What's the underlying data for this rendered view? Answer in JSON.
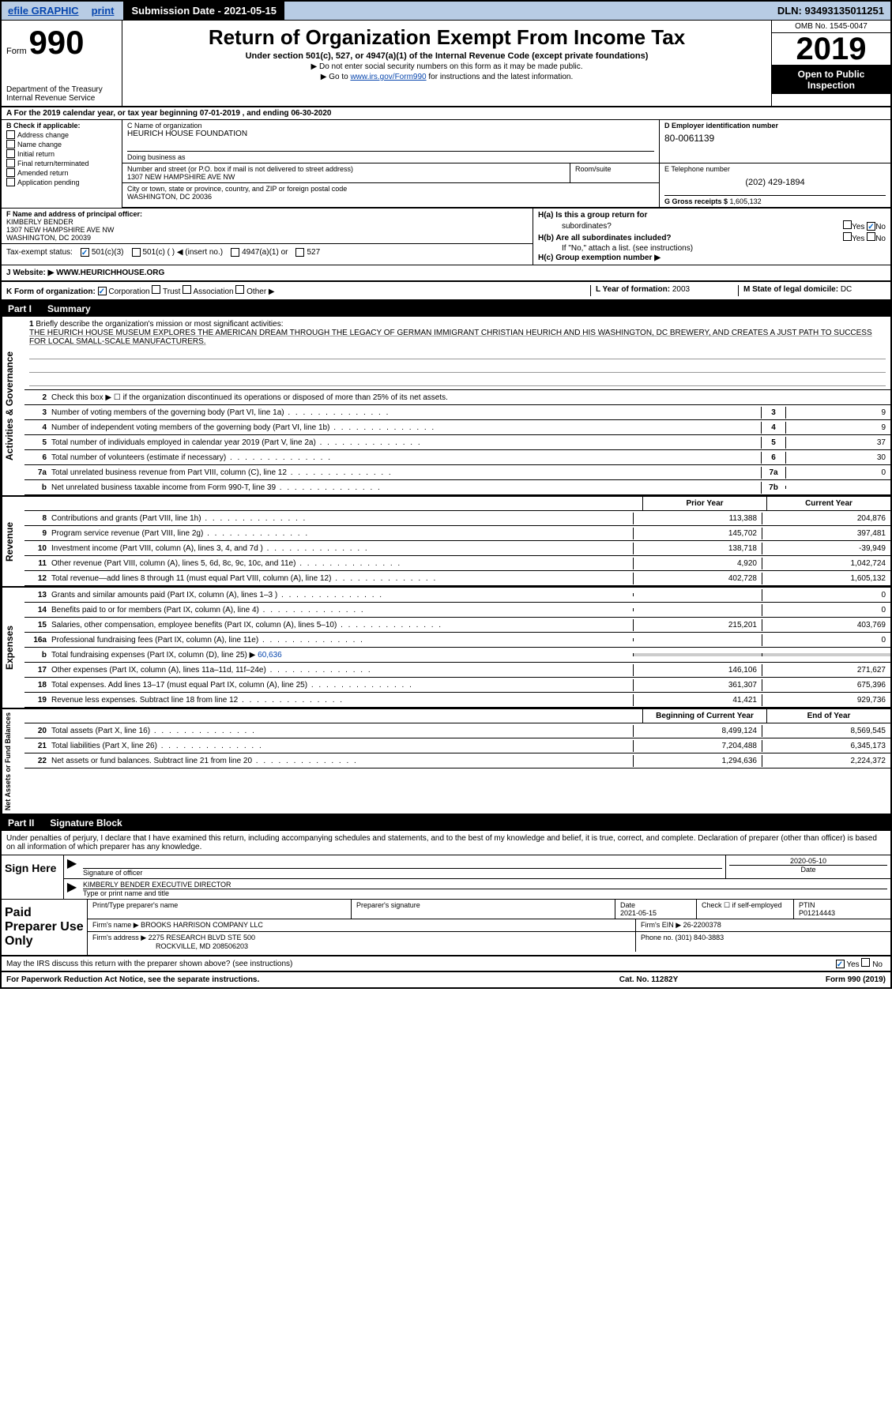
{
  "topbar": {
    "efile": "efile GRAPHIC",
    "print": "print",
    "submission_label": "Submission Date - 2021-05-15",
    "dln": "DLN: 93493135011251"
  },
  "header": {
    "form_label": "Form",
    "form_number": "990",
    "dept": "Department of the Treasury\nInternal Revenue Service",
    "title": "Return of Organization Exempt From Income Tax",
    "subtitle": "Under section 501(c), 527, or 4947(a)(1) of the Internal Revenue Code (except private foundations)",
    "note1": "▶ Do not enter social security numbers on this form as it may be made public.",
    "note2_pre": "▶ Go to ",
    "note2_link": "www.irs.gov/Form990",
    "note2_post": " for instructions and the latest information.",
    "omb": "OMB No. 1545-0047",
    "year": "2019",
    "open_public": "Open to Public Inspection"
  },
  "period": {
    "text": "A For the 2019 calendar year, or tax year beginning 07-01-2019    , and ending 06-30-2020"
  },
  "section_b": {
    "label": "B Check if applicable:",
    "items": [
      "Address change",
      "Name change",
      "Initial return",
      "Final return/terminated",
      "Amended return",
      "Application pending"
    ]
  },
  "org": {
    "name_label": "C Name of organization",
    "name": "HEURICH HOUSE FOUNDATION",
    "dba_label": "Doing business as",
    "street_label": "Number and street (or P.O. box if mail is not delivered to street address)",
    "street": "1307 NEW HAMPSHIRE AVE NW",
    "suite_label": "Room/suite",
    "city_label": "City or town, state or province, country, and ZIP or foreign postal code",
    "city": "WASHINGTON, DC  20036",
    "ein_label": "D Employer identification number",
    "ein": "80-0061139",
    "phone_label": "E Telephone number",
    "phone": "(202) 429-1894",
    "receipts_label": "G Gross receipts $ ",
    "receipts": "1,605,132"
  },
  "officer": {
    "label": "F  Name and address of principal officer:",
    "name": "KIMBERLY BENDER",
    "street": "1307 NEW HAMPSHIRE AVE NW",
    "city": "WASHINGTON, DC  20039"
  },
  "group": {
    "ha_label": "H(a)  Is this a group return for",
    "ha_label2": "subordinates?",
    "hb_label": "H(b)  Are all subordinates included?",
    "hb_note": "If \"No,\" attach a list. (see instructions)",
    "hc_label": "H(c)  Group exemption number ▶"
  },
  "tax_status": {
    "label": "Tax-exempt status:",
    "opts": [
      "501(c)(3)",
      "501(c) (  ) ◀ (insert no.)",
      "4947(a)(1) or",
      "527"
    ]
  },
  "website": {
    "label": "J  Website: ▶  ",
    "url": "WWW.HEURICHHOUSE.ORG"
  },
  "form_org": {
    "k_label": "K Form of organization:",
    "opts": [
      "Corporation",
      "Trust",
      "Association",
      "Other ▶"
    ],
    "l_label": "L Year of formation: ",
    "l_val": "2003",
    "m_label": "M State of legal domicile: ",
    "m_val": "DC"
  },
  "part1": {
    "number": "Part I",
    "title": "Summary"
  },
  "mission": {
    "num": "1",
    "label": "Briefly describe the organization's mission or most significant activities:",
    "text": "THE HEURICH HOUSE MUSEUM EXPLORES THE AMERICAN DREAM THROUGH THE LEGACY OF GERMAN IMMIGRANT CHRISTIAN HEURICH AND HIS WASHINGTON, DC BREWERY, AND CREATES A JUST PATH TO SUCCESS FOR LOCAL SMALL-SCALE MANUFACTURERS."
  },
  "activities": {
    "vertical": "Activities & Governance",
    "line2": "Check this box ▶ ☐  if the organization discontinued its operations or disposed of more than 25% of its net assets.",
    "lines": [
      {
        "num": "3",
        "label": "Number of voting members of the governing body (Part VI, line 1a)",
        "box": "3",
        "val": "9"
      },
      {
        "num": "4",
        "label": "Number of independent voting members of the governing body (Part VI, line 1b)",
        "box": "4",
        "val": "9"
      },
      {
        "num": "5",
        "label": "Total number of individuals employed in calendar year 2019 (Part V, line 2a)",
        "box": "5",
        "val": "37"
      },
      {
        "num": "6",
        "label": "Total number of volunteers (estimate if necessary)",
        "box": "6",
        "val": "30"
      },
      {
        "num": "7a",
        "label": "Total unrelated business revenue from Part VIII, column (C), line 12",
        "box": "7a",
        "val": "0"
      },
      {
        "num": "b",
        "label": "Net unrelated business taxable income from Form 990-T, line 39",
        "box": "7b",
        "val": ""
      }
    ]
  },
  "revenue": {
    "vertical": "Revenue",
    "prior_header": "Prior Year",
    "current_header": "Current Year",
    "lines": [
      {
        "num": "8",
        "label": "Contributions and grants (Part VIII, line 1h)",
        "prior": "113,388",
        "curr": "204,876"
      },
      {
        "num": "9",
        "label": "Program service revenue (Part VIII, line 2g)",
        "prior": "145,702",
        "curr": "397,481"
      },
      {
        "num": "10",
        "label": "Investment income (Part VIII, column (A), lines 3, 4, and 7d )",
        "prior": "138,718",
        "curr": "-39,949"
      },
      {
        "num": "11",
        "label": "Other revenue (Part VIII, column (A), lines 5, 6d, 8c, 9c, 10c, and 11e)",
        "prior": "4,920",
        "curr": "1,042,724"
      },
      {
        "num": "12",
        "label": "Total revenue—add lines 8 through 11 (must equal Part VIII, column (A), line 12)",
        "prior": "402,728",
        "curr": "1,605,132"
      }
    ]
  },
  "expenses": {
    "vertical": "Expenses",
    "lines": [
      {
        "num": "13",
        "label": "Grants and similar amounts paid (Part IX, column (A), lines 1–3 )",
        "prior": "",
        "curr": "0"
      },
      {
        "num": "14",
        "label": "Benefits paid to or for members (Part IX, column (A), line 4)",
        "prior": "",
        "curr": "0"
      },
      {
        "num": "15",
        "label": "Salaries, other compensation, employee benefits (Part IX, column (A), lines 5–10)",
        "prior": "215,201",
        "curr": "403,769"
      },
      {
        "num": "16a",
        "label": "Professional fundraising fees (Part IX, column (A), line 11e)",
        "prior": "",
        "curr": "0"
      }
    ],
    "line_b": {
      "num": "b",
      "label": "Total fundraising expenses (Part IX, column (D), line 25) ▶",
      "val": "60,636"
    },
    "lines2": [
      {
        "num": "17",
        "label": "Other expenses (Part IX, column (A), lines 11a–11d, 11f–24e)",
        "prior": "146,106",
        "curr": "271,627"
      },
      {
        "num": "18",
        "label": "Total expenses. Add lines 13–17 (must equal Part IX, column (A), line 25)",
        "prior": "361,307",
        "curr": "675,396"
      },
      {
        "num": "19",
        "label": "Revenue less expenses. Subtract line 18 from line 12",
        "prior": "41,421",
        "curr": "929,736"
      }
    ]
  },
  "netassets": {
    "vertical": "Net Assets or Fund Balances",
    "begin_header": "Beginning of Current Year",
    "end_header": "End of Year",
    "lines": [
      {
        "num": "20",
        "label": "Total assets (Part X, line 16)",
        "prior": "8,499,124",
        "curr": "8,569,545"
      },
      {
        "num": "21",
        "label": "Total liabilities (Part X, line 26)",
        "prior": "7,204,488",
        "curr": "6,345,173"
      },
      {
        "num": "22",
        "label": "Net assets or fund balances. Subtract line 21 from line 20",
        "prior": "1,294,636",
        "curr": "2,224,372"
      }
    ]
  },
  "part2": {
    "number": "Part II",
    "title": "Signature Block"
  },
  "sig": {
    "intro": "Under penalties of perjury, I declare that I have examined this return, including accompanying schedules and statements, and to the best of my knowledge and belief, it is true, correct, and complete. Declaration of preparer (other than officer) is based on all information of which preparer has any knowledge.",
    "sign_here": "Sign Here",
    "sig_officer_label": "Signature of officer",
    "date_label": "Date",
    "date_val": "2020-05-10",
    "name_title": "KIMBERLY BENDER  EXECUTIVE DIRECTOR",
    "name_title_label": "Type or print name and title"
  },
  "preparer": {
    "label": "Paid Preparer Use Only",
    "name_label": "Print/Type preparer's name",
    "sig_label": "Preparer's signature",
    "date_label": "Date",
    "date_val": "2021-05-15",
    "check_label": "Check ☐ if self-employed",
    "ptin_label": "PTIN",
    "ptin": "P01214443",
    "firm_name_label": "Firm's name    ▶",
    "firm_name": "BROOKS HARRISON COMPANY LLC",
    "firm_ein_label": "Firm's EIN ▶",
    "firm_ein": "26-2200378",
    "firm_addr_label": "Firm's address ▶",
    "firm_addr1": "2275 RESEARCH BLVD STE 500",
    "firm_addr2": "ROCKVILLE, MD  208506203",
    "phone_label": "Phone no. ",
    "phone": "(301) 840-3883"
  },
  "discuss": {
    "label": "May the IRS discuss this return with the preparer shown above? (see instructions)",
    "yes": "Yes",
    "no": "No"
  },
  "footer": {
    "left": "For Paperwork Reduction Act Notice, see the separate instructions.",
    "mid": "Cat. No. 11282Y",
    "right": "Form 990 (2019)"
  }
}
